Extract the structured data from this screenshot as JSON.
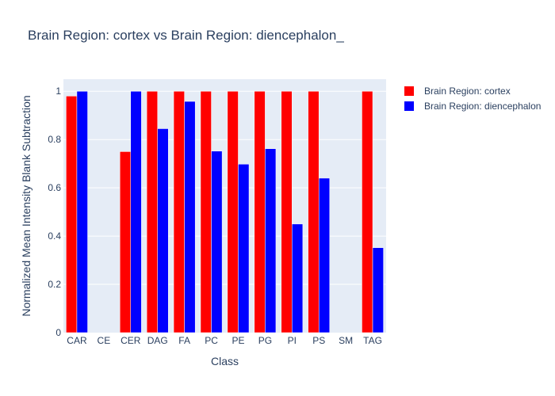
{
  "chart_data": {
    "type": "bar",
    "title": "Brain Region: cortex vs Brain Region: diencephalon_",
    "xlabel": "Class",
    "ylabel": "Normalized Mean Intensity Blank Subtraction",
    "categories": [
      "CAR",
      "CE",
      "CER",
      "DAG",
      "FA",
      "PC",
      "PE",
      "PG",
      "PI",
      "PS",
      "SM",
      "TAG"
    ],
    "ylim": [
      0,
      1.05
    ],
    "yticks": [
      0,
      0.2,
      0.4,
      0.6,
      0.8,
      1
    ],
    "ytick_labels": [
      "0",
      "0.2",
      "0.4",
      "0.6",
      "0.8",
      "1"
    ],
    "grid": true,
    "legend_position": "top-right",
    "series": [
      {
        "name": "Brain Region: cortex",
        "color": "#ff0000",
        "values": [
          0.98,
          null,
          0.75,
          1.0,
          1.0,
          1.0,
          1.0,
          1.0,
          1.0,
          1.0,
          null,
          1.0
        ]
      },
      {
        "name": "Brain Region: diencephalon",
        "color": "#0000ff",
        "values": [
          1.0,
          null,
          1.0,
          0.845,
          0.958,
          0.752,
          0.698,
          0.762,
          0.45,
          0.64,
          null,
          0.352
        ]
      }
    ]
  },
  "colors": {
    "plot_background": "#e5ecf6",
    "grid": "#ffffff",
    "text": "#2a3f5f"
  }
}
